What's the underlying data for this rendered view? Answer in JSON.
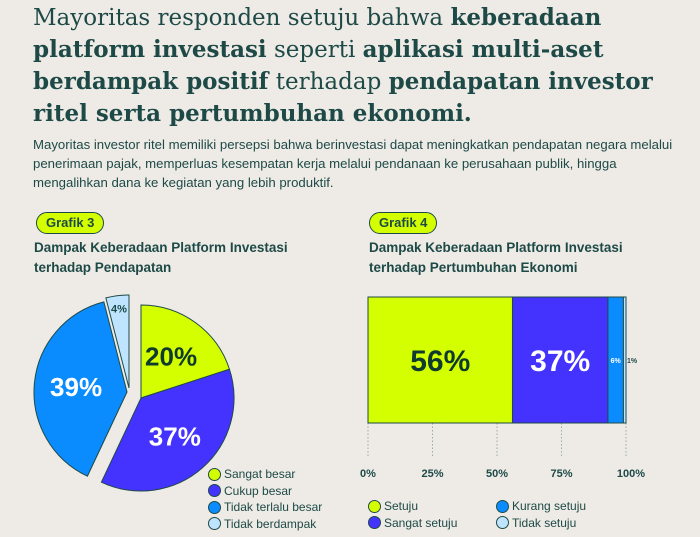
{
  "headline": {
    "parts": [
      {
        "text": "Mayoritas responden setuju bahwa ",
        "bold": false
      },
      {
        "text": "keberadaan platform investasi",
        "bold": true
      },
      {
        "text": " seperti ",
        "bold": false
      },
      {
        "text": "aplikasi multi-aset berdampak positif",
        "bold": true
      },
      {
        "text": " terhadap ",
        "bold": false
      },
      {
        "text": "pendapatan investor ritel serta pertumbuhan ekonomi.",
        "bold": true
      }
    ]
  },
  "lead": "Mayoritas investor ritel memiliki persepsi bahwa berinvestasi dapat meningkatkan pendapatan negara melalui penerimaan pajak, memperluas kesempatan kerja melalui pendanaan ke perusahaan publik, hingga mengalihkan dana ke kegiatan yang lebih produktif.",
  "chart_data": [
    {
      "type": "pie",
      "badge": "Grafik 3",
      "title": "Dampak Keberadaan Platform Investasi terhadap Pendapatan",
      "categories": [
        "Sangat besar",
        "Cukup besar",
        "Tidak terlalu besar",
        "Tidak berdampak"
      ],
      "values": [
        20,
        37,
        39,
        4
      ],
      "labels": [
        "20%",
        "37%",
        "39%",
        "4%"
      ],
      "colors": [
        "#d4ff00",
        "#4433ff",
        "#0a8cff",
        "#bfe4ff"
      ],
      "label_colors": [
        "#0f3b2f",
        "#ffffff",
        "#ffffff",
        "#1d4a47"
      ],
      "legend": "bottom-right"
    },
    {
      "type": "bar",
      "stacked": true,
      "orientation": "horizontal",
      "badge": "Grafik 4",
      "title": "Dampak Keberadaan Platform Investasi terhadap Pertumbuhan Ekonomi",
      "series": [
        {
          "name": "Setuju",
          "value": 56,
          "label": "56%",
          "color": "#d4ff00",
          "label_color": "#0f3b2f"
        },
        {
          "name": "Sangat setuju",
          "value": 37,
          "label": "37%",
          "color": "#4433ff",
          "label_color": "#ffffff"
        },
        {
          "name": "Kurang setuju",
          "value": 6,
          "label": "6%",
          "color": "#0a8cff",
          "label_color": "#ffffff"
        },
        {
          "name": "Tidak setuju",
          "value": 1,
          "label": "1%",
          "color": "#bfe4ff",
          "label_color": "#1d4a47"
        }
      ],
      "xlim": [
        0,
        100
      ],
      "xticks": [
        "0%",
        "25%",
        "50%",
        "75%",
        "100%"
      ],
      "legend": "bottom",
      "grid": "dotted vertical"
    }
  ]
}
